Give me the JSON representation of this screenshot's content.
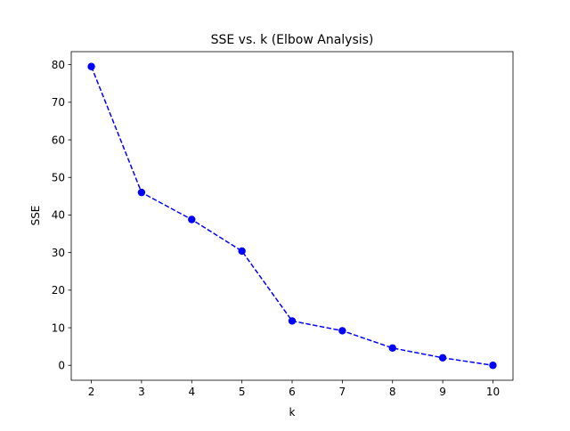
{
  "chart_data": {
    "type": "line",
    "title": "SSE vs. k (Elbow Analysis)",
    "xlabel": "k",
    "ylabel": "SSE",
    "x": [
      2,
      3,
      4,
      5,
      6,
      7,
      8,
      9,
      10
    ],
    "series": [
      {
        "values": [
          79.5,
          46.0,
          38.8,
          30.4,
          11.8,
          9.2,
          4.6,
          2.0,
          0.0
        ],
        "color": "#0000ff",
        "line_style": "dashed",
        "marker": "circle"
      }
    ],
    "xticks": [
      2,
      3,
      4,
      5,
      6,
      7,
      8,
      9,
      10
    ],
    "yticks": [
      0,
      10,
      20,
      30,
      40,
      50,
      60,
      70,
      80
    ],
    "xlim": [
      1.6,
      10.4
    ],
    "ylim": [
      -3.97,
      83.47
    ],
    "grid": false,
    "legend": "none"
  }
}
